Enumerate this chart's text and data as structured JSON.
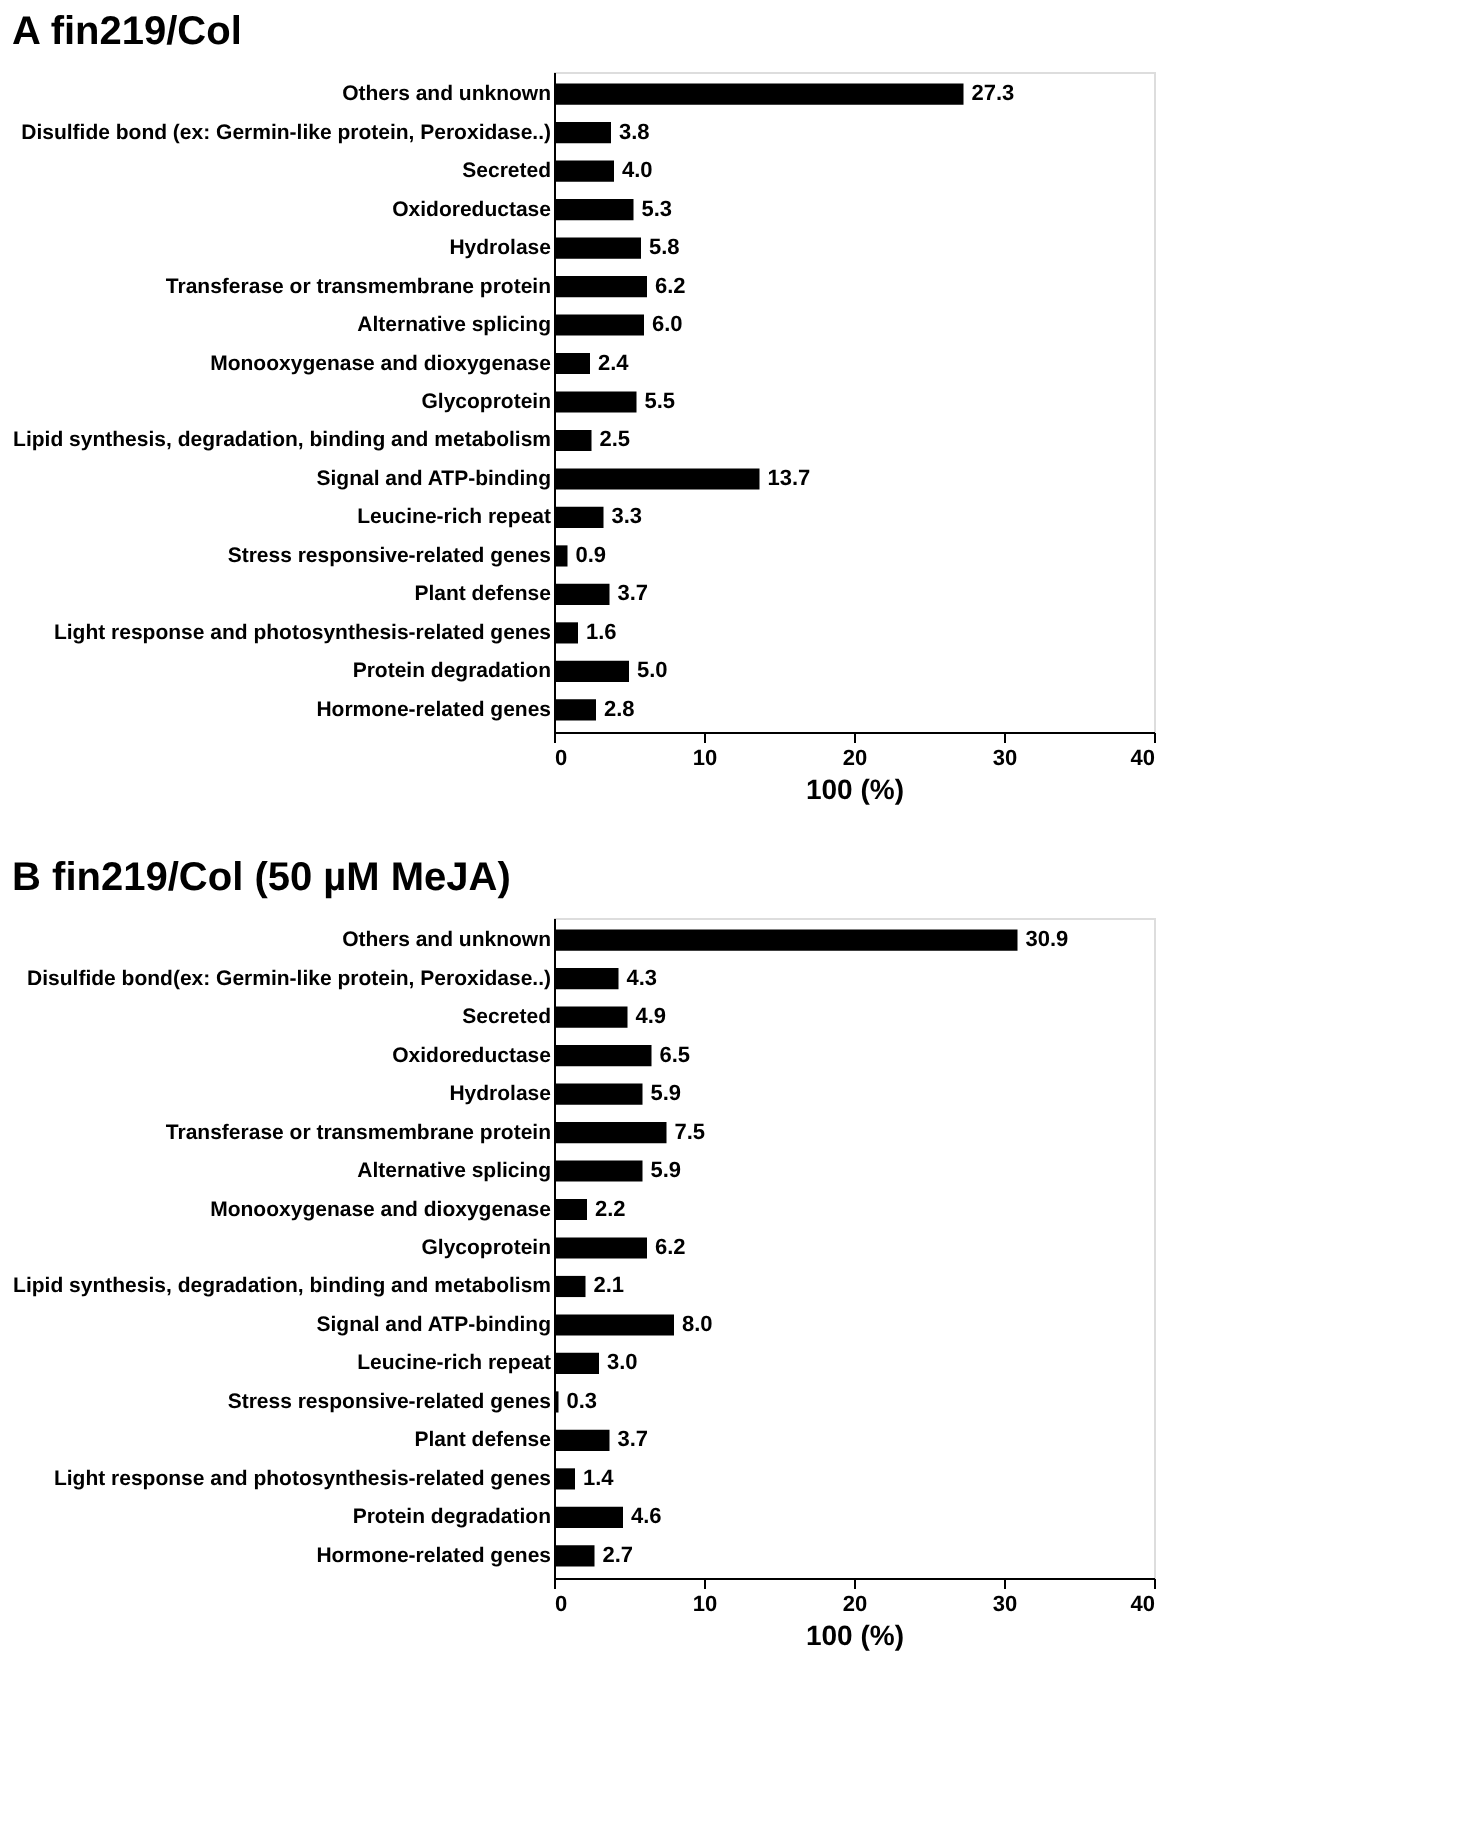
{
  "chart_data": [
    {
      "type": "bar",
      "orientation": "horizontal",
      "title": "A fin219/Col",
      "xlabel": "100 (%)",
      "categories": [
        "Others and unknown",
        "Disulfide bond (ex: Germin-like protein, Peroxidase..)",
        "Secreted",
        "Oxidoreductase",
        "Hydrolase",
        "Transferase or transmembrane protein",
        "Alternative splicing",
        "Monooxygenase and dioxygenase",
        "Glycoprotein",
        "Lipid synthesis, degradation, binding and metabolism",
        "Signal and ATP-binding",
        "Leucine-rich repeat",
        "Stress responsive-related genes",
        "Plant defense",
        "Light response and photosynthesis-related genes",
        "Protein degradation",
        "Hormone-related genes"
      ],
      "values": [
        27.3,
        3.8,
        4.0,
        5.3,
        5.8,
        6.2,
        6.0,
        2.4,
        5.5,
        2.5,
        13.7,
        3.3,
        0.9,
        3.7,
        1.6,
        5.0,
        2.8
      ],
      "value_labels": [
        "27.3",
        "3.8",
        "4.0",
        "5.3",
        "5.8",
        "6.2",
        "6.0",
        "2.4",
        "5.5",
        "2.5",
        "13.7",
        "3.3",
        "0.9",
        "3.7",
        "1.6",
        "5.0",
        "2.8"
      ],
      "color": "#000000",
      "xlim": [
        0,
        40
      ],
      "xticks": [
        0,
        10,
        20,
        30,
        40
      ]
    },
    {
      "type": "bar",
      "orientation": "horizontal",
      "title": "B fin219/Col (50 µM MeJA)",
      "xlabel": "100 (%)",
      "categories": [
        "Others and unknown",
        "Disulfide bond(ex: Germin-like protein, Peroxidase..)",
        "Secreted",
        "Oxidoreductase",
        "Hydrolase",
        "Transferase or transmembrane protein",
        "Alternative splicing",
        "Monooxygenase and dioxygenase",
        "Glycoprotein",
        "Lipid synthesis, degradation, binding and metabolism",
        "Signal and ATP-binding",
        "Leucine-rich repeat",
        "Stress responsive-related genes",
        "Plant defense",
        "Light response and photosynthesis-related genes",
        "Protein degradation",
        "Hormone-related genes"
      ],
      "values": [
        30.9,
        4.3,
        4.9,
        6.5,
        5.9,
        7.5,
        5.9,
        2.2,
        6.2,
        2.1,
        8.0,
        3.0,
        0.3,
        3.7,
        1.4,
        4.6,
        2.7
      ],
      "value_labels": [
        "30.9",
        "4.3",
        "4.9",
        "6.5",
        "5.9",
        "7.5",
        "5.9",
        "2.2",
        "6.2",
        "2.1",
        "8.0",
        "3.0",
        "0.3",
        "3.7",
        "1.4",
        "4.6",
        "2.7"
      ],
      "color": "#000000",
      "xlim": [
        0,
        40
      ],
      "xticks": [
        0,
        10,
        20,
        30,
        40
      ]
    }
  ]
}
